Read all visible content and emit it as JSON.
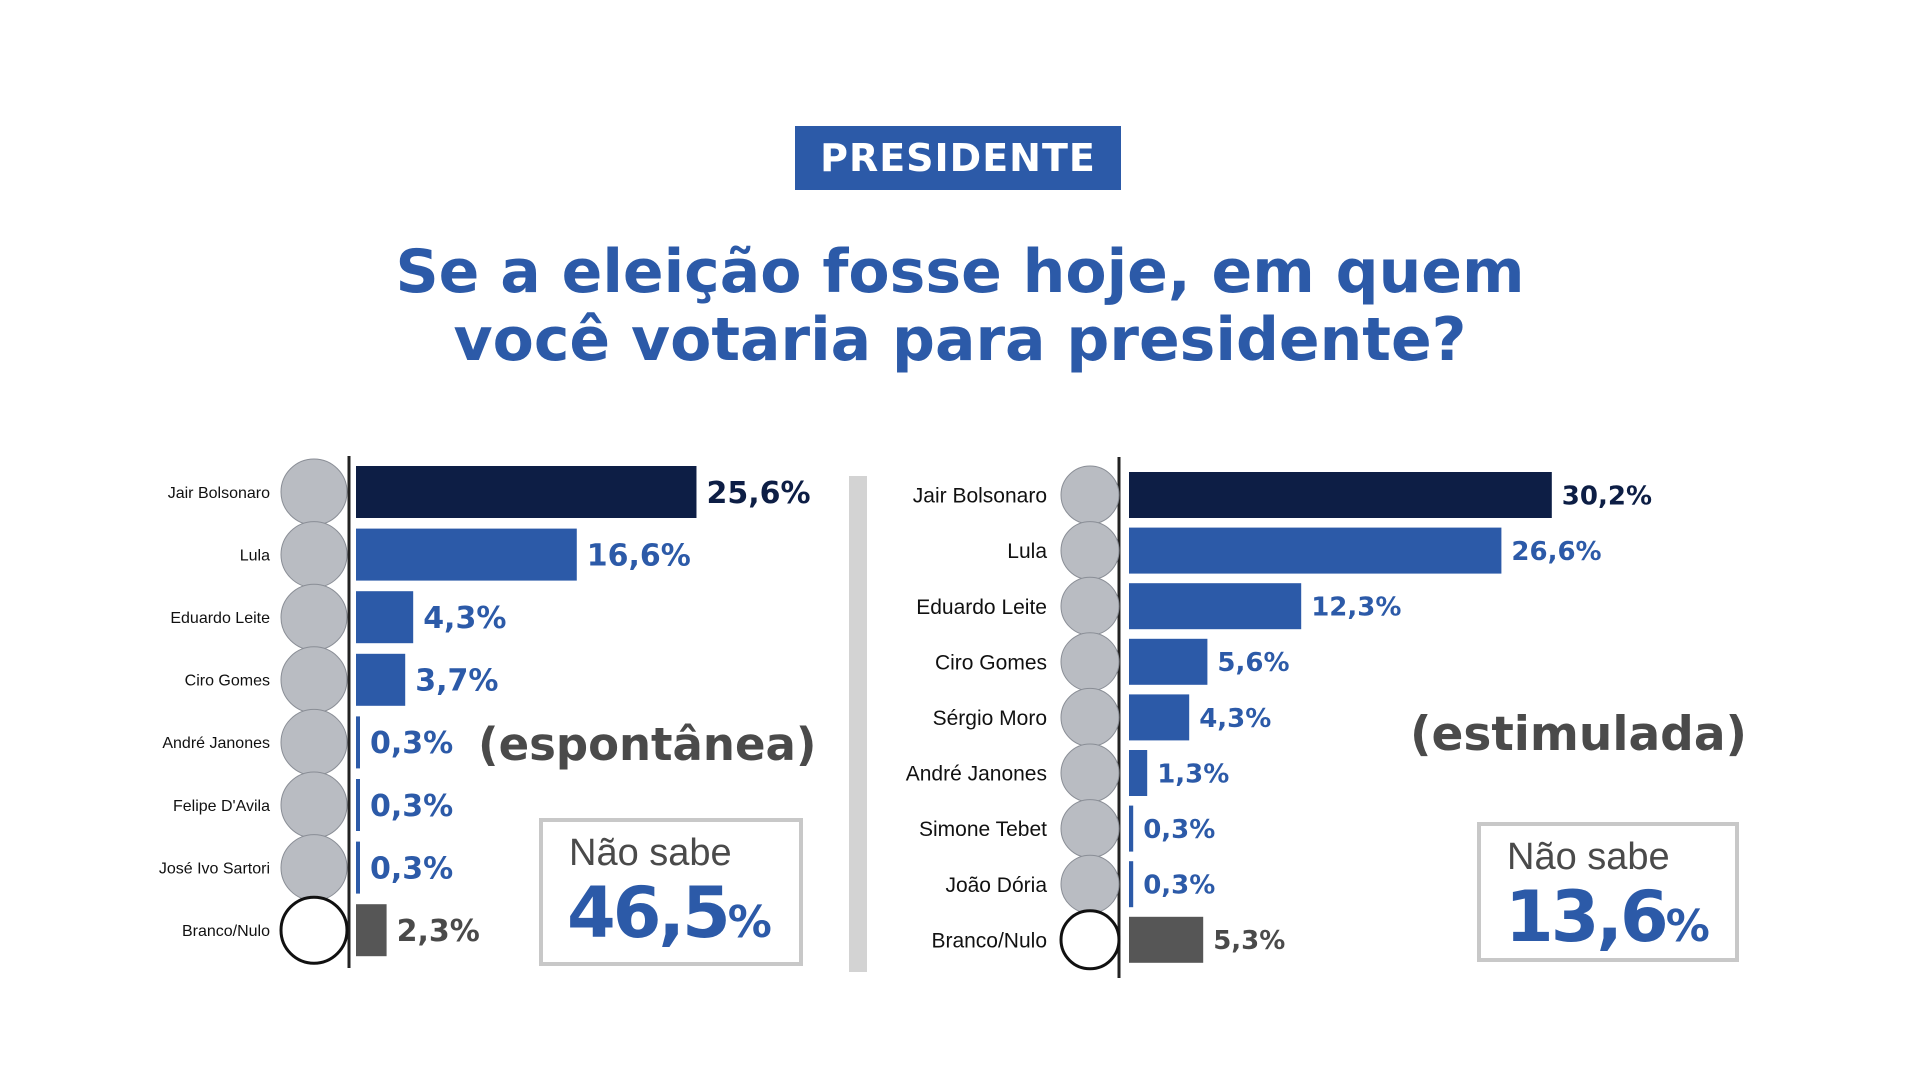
{
  "header": {
    "badge": "PRESIDENTE",
    "question_line1": "Se a eleição fosse hoje, em quem",
    "question_line2": "você votaria para presidente?"
  },
  "colors": {
    "blue": "#2c5aa8",
    "navy": "#0d1e45",
    "gray_bar": "#565656",
    "gray_text": "#4a4a4a",
    "divider": "#d3d3d3",
    "box_border": "#c8c8c8"
  },
  "chart_data": [
    {
      "type": "bar",
      "orientation": "horizontal",
      "title": "(espontânea)",
      "categories": [
        "Jair Bolsonaro",
        "Lula",
        "Eduardo Leite",
        "Ciro Gomes",
        "André Janones",
        "Felipe D'Avila",
        "José Ivo Sartori",
        "Branco/Nulo"
      ],
      "values": [
        25.6,
        16.6,
        4.3,
        3.7,
        0.3,
        0.3,
        0.3,
        2.3
      ],
      "value_labels": [
        "25,6%",
        "16,6%",
        "4,3%",
        "3,7%",
        "0,3%",
        "0,3%",
        "0,3%",
        "2,3%"
      ],
      "unit": "%",
      "grid": false,
      "legend": "none",
      "nao_sabe": {
        "label": "Não sabe",
        "value": 46.5,
        "number": "46,5",
        "percent": "%"
      }
    },
    {
      "type": "bar",
      "orientation": "horizontal",
      "title": "(estimulada)",
      "categories": [
        "Jair Bolsonaro",
        "Lula",
        "Eduardo Leite",
        "Ciro Gomes",
        "Sérgio Moro",
        "André Janones",
        "Simone Tebet",
        "João Dória",
        "Branco/Nulo"
      ],
      "values": [
        30.2,
        26.6,
        12.3,
        5.6,
        4.3,
        1.3,
        0.3,
        0.3,
        5.3
      ],
      "value_labels": [
        "30,2%",
        "26,6%",
        "12,3%",
        "5,6%",
        "4,3%",
        "1,3%",
        "0,3%",
        "0,3%",
        "5,3%"
      ],
      "unit": "%",
      "grid": false,
      "legend": "none",
      "nao_sabe": {
        "label": "Não sabe",
        "value": 13.6,
        "number": "13,6",
        "percent": "%"
      }
    }
  ]
}
